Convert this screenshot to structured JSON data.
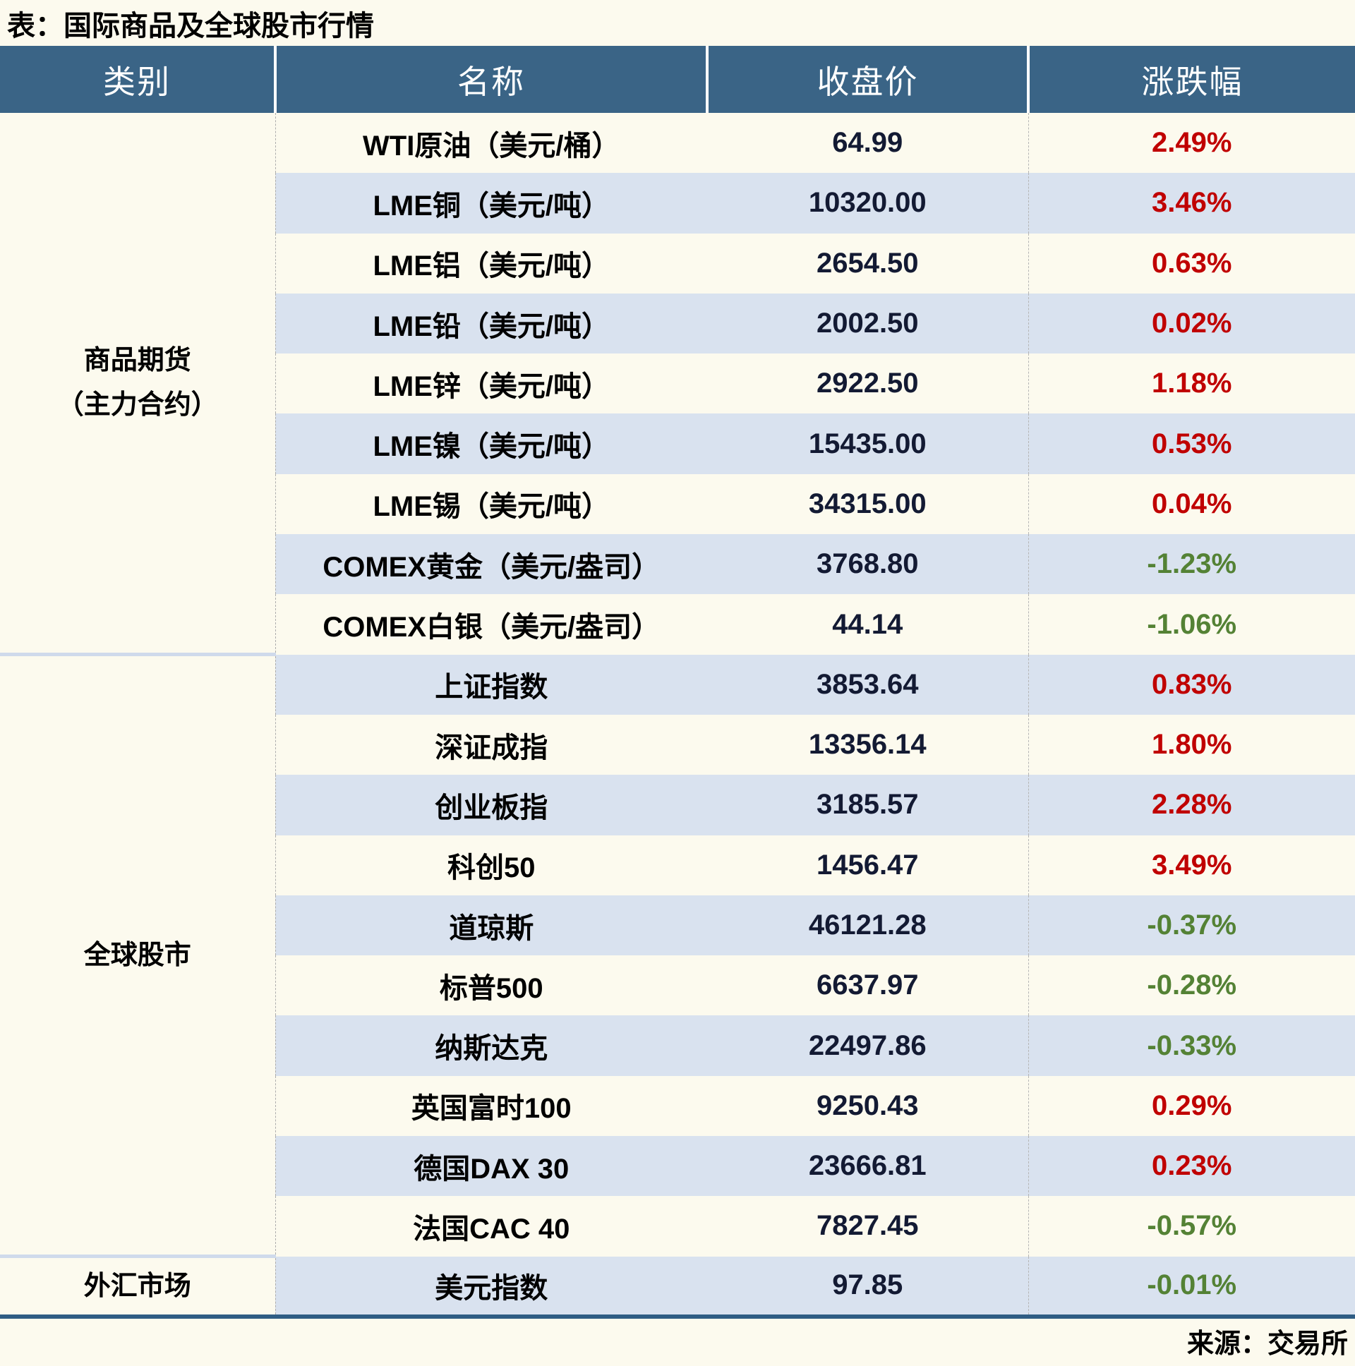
{
  "chart_data": {
    "type": "table",
    "title": "表：国际商品及全球股市行情",
    "source": "来源：交易所",
    "columns": [
      "类别",
      "名称",
      "收盘价",
      "涨跌幅"
    ],
    "groups": [
      {
        "category": "商品期货（主力合约）",
        "category_lines": [
          "商品期货",
          "（主力合约）"
        ],
        "rows": [
          {
            "name": "WTI原油（美元/桶）",
            "close": "64.99",
            "change": "2.49%"
          },
          {
            "name": "LME铜（美元/吨）",
            "close": "10320.00",
            "change": "3.46%"
          },
          {
            "name": "LME铝（美元/吨）",
            "close": "2654.50",
            "change": "0.63%"
          },
          {
            "name": "LME铅（美元/吨）",
            "close": "2002.50",
            "change": "0.02%"
          },
          {
            "name": "LME锌（美元/吨）",
            "close": "2922.50",
            "change": "1.18%"
          },
          {
            "name": "LME镍（美元/吨）",
            "close": "15435.00",
            "change": "0.53%"
          },
          {
            "name": "LME锡（美元/吨）",
            "close": "34315.00",
            "change": "0.04%"
          },
          {
            "name": "COMEX黄金（美元/盎司）",
            "close": "3768.80",
            "change": "-1.23%"
          },
          {
            "name": "COMEX白银（美元/盎司）",
            "close": "44.14",
            "change": "-1.06%"
          }
        ]
      },
      {
        "category": "全球股市",
        "category_lines": [
          "全球股市"
        ],
        "rows": [
          {
            "name": "上证指数",
            "close": "3853.64",
            "change": "0.83%"
          },
          {
            "name": "深证成指",
            "close": "13356.14",
            "change": "1.80%"
          },
          {
            "name": "创业板指",
            "close": "3185.57",
            "change": "2.28%"
          },
          {
            "name": "科创50",
            "close": "1456.47",
            "change": "3.49%"
          },
          {
            "name": "道琼斯",
            "close": "46121.28",
            "change": "-0.37%"
          },
          {
            "name": "标普500",
            "close": "6637.97",
            "change": "-0.28%"
          },
          {
            "name": "纳斯达克",
            "close": "22497.86",
            "change": "-0.33%"
          },
          {
            "name": "英国富时100",
            "close": "9250.43",
            "change": "0.29%"
          },
          {
            "name": "德国DAX 30",
            "close": "23666.81",
            "change": "0.23%"
          },
          {
            "name": "法国CAC 40",
            "close": "7827.45",
            "change": "-0.57%"
          }
        ]
      },
      {
        "category": "外汇市场",
        "category_lines": [
          "外汇市场"
        ],
        "rows": [
          {
            "name": "美元指数",
            "close": "97.85",
            "change": "-0.01%"
          }
        ]
      }
    ],
    "layout": {
      "legend_position": "none",
      "grid": "alternating-row-shading",
      "change_positive_color_meaning": "up (red, CN convention)",
      "change_negative_color_meaning": "down (green, CN convention)"
    }
  },
  "colors": {
    "page_bg": "#FCFAEE",
    "header_bg": "#3A6486",
    "row_alt_bg": "#D9E2EF",
    "up_red": "#C00000",
    "down_green": "#548235",
    "bottom_border": "#2F5D84",
    "section_sep": "#CFDAEB",
    "price_text": "#131A33"
  }
}
